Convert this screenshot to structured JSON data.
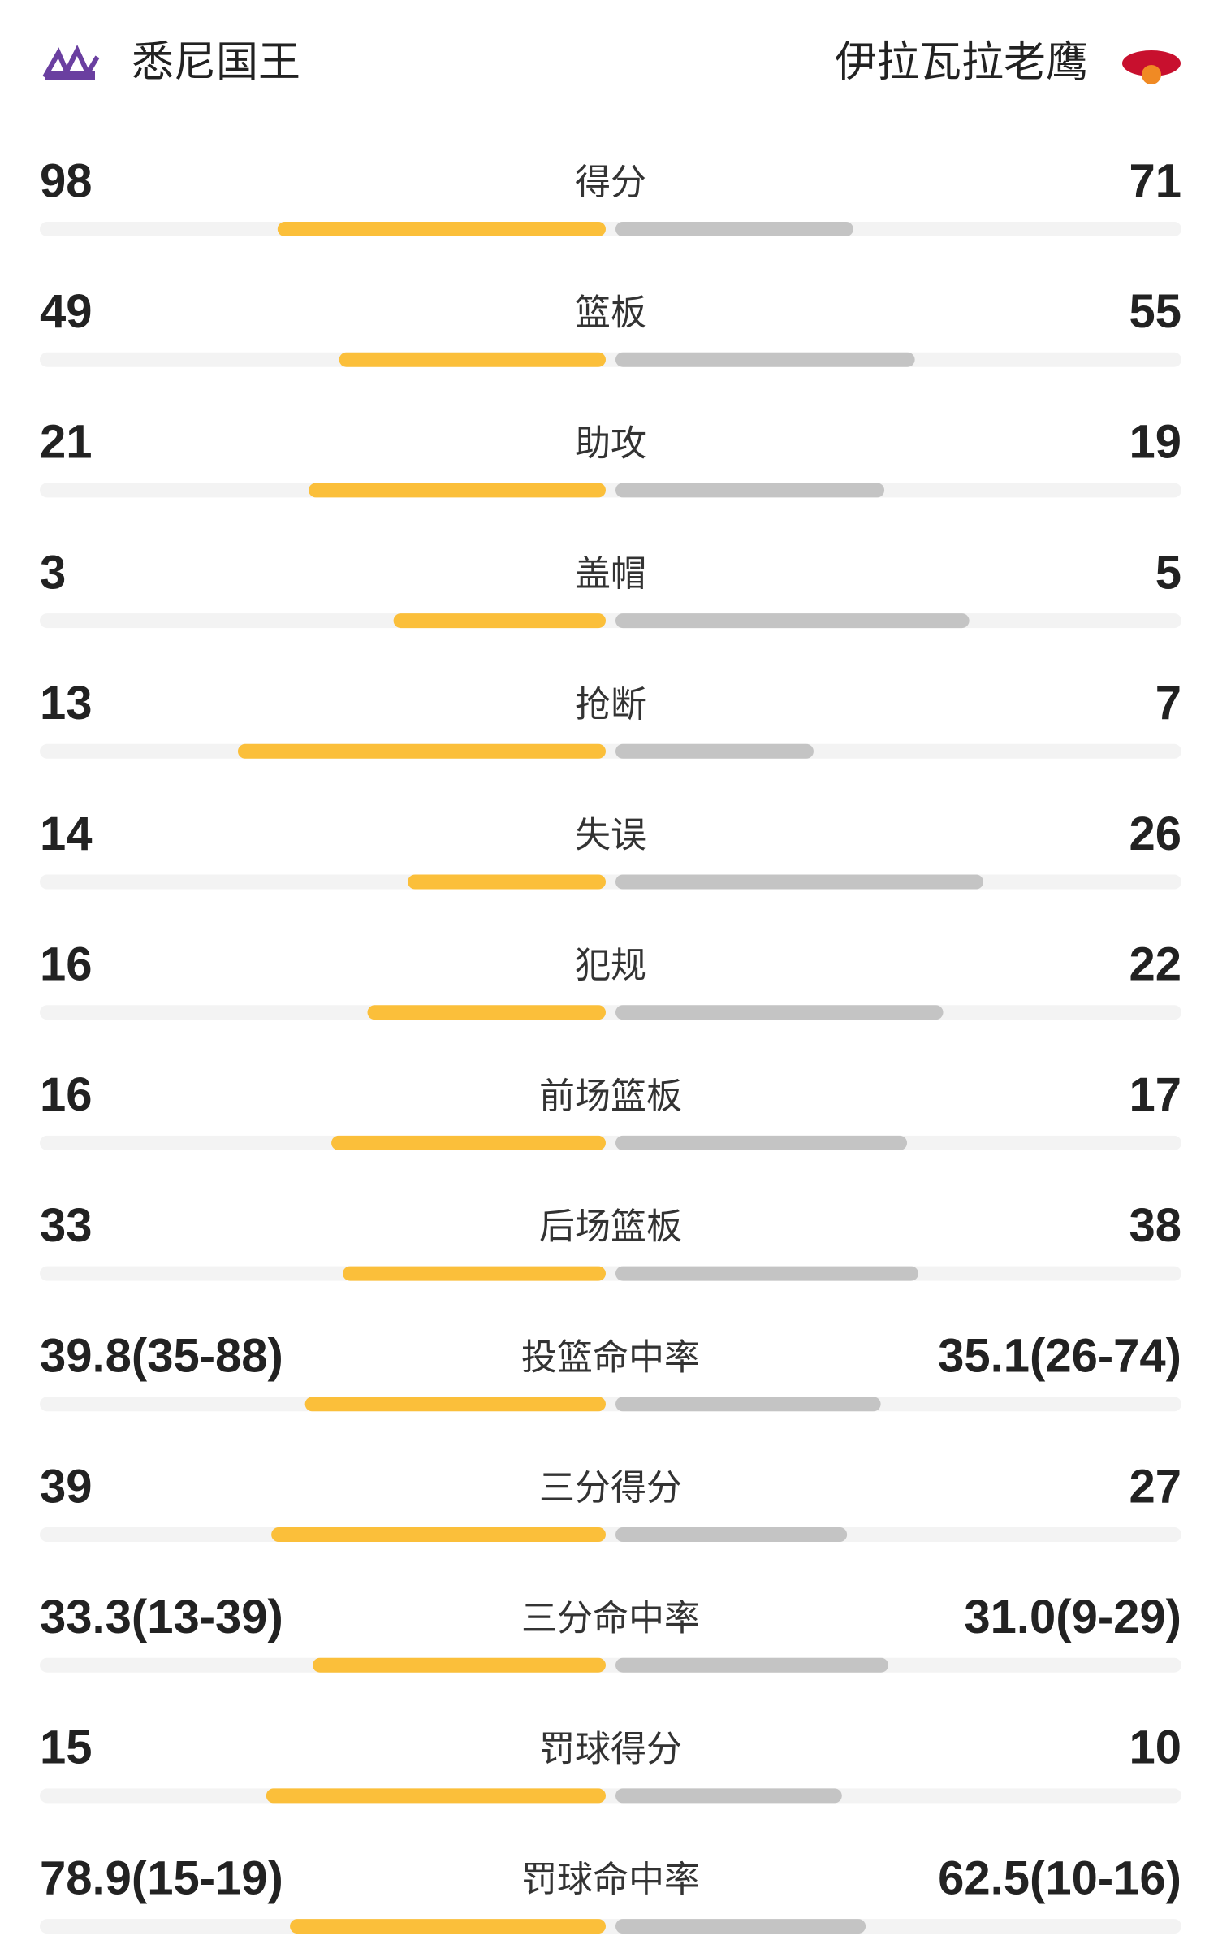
{
  "header": {
    "home_team": "悉尼国王",
    "away_team": "伊拉瓦拉老鹰"
  },
  "rows": [
    {
      "label": "得分",
      "left": 98,
      "right": 71
    },
    {
      "label": "篮板",
      "left": 49,
      "right": 55
    },
    {
      "label": "助攻",
      "left": 21,
      "right": 19
    },
    {
      "label": "盖帽",
      "left": 3,
      "right": 5
    },
    {
      "label": "抢断",
      "left": 13,
      "right": 7
    },
    {
      "label": "失误",
      "left": 14,
      "right": 26
    },
    {
      "label": "犯规",
      "left": 16,
      "right": 22
    },
    {
      "label": "前场篮板",
      "left": 16,
      "right": 17
    },
    {
      "label": "后场篮板",
      "left": 33,
      "right": 38
    },
    {
      "label": "投篮命中率",
      "left": "39.8(35-88)",
      "left_value": 39.8,
      "right": "35.1(26-74)",
      "right_value": 35.1
    },
    {
      "label": "三分得分",
      "left": 39,
      "right": 27
    },
    {
      "label": "三分命中率",
      "left": "33.3(13-39)",
      "left_value": 33.3,
      "right": "31.0(9-29)",
      "right_value": 31.0
    },
    {
      "label": "罚球得分",
      "left": 15,
      "right": 10
    },
    {
      "label": "罚球命中率",
      "left": "78.9(15-19)",
      "left_value": 78.9,
      "right": "62.5(10-16)",
      "right_value": 62.5
    }
  ]
}
